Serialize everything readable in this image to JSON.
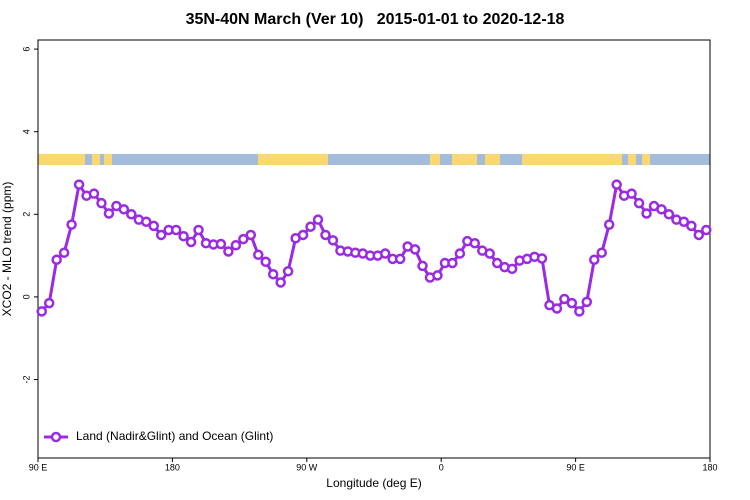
{
  "chart_data": {
    "type": "line",
    "title": "35N-40N March (Ver 10)   2015-01-01 to 2020-12-18",
    "x_label": "Longitude (deg E)",
    "y_label": "XCO2 - MLO trend (ppm)",
    "xlim": [
      90,
      540
    ],
    "ylim": [
      -3.9,
      6.22
    ],
    "xticks": [
      {
        "value": 90,
        "label": "90 E"
      },
      180,
      {
        "value": 270,
        "label": "90 W"
      },
      {
        "value": 360,
        "label": "0"
      },
      {
        "value": 450,
        "label": "90 E"
      },
      {
        "value": 540,
        "label": "180"
      }
    ],
    "yticks": [
      -2,
      0,
      2,
      4,
      6
    ],
    "grid": false,
    "legend": "bottom-left",
    "x": [
      92.5,
      97.5,
      102.5,
      107.5,
      112.5,
      117.5,
      122.5,
      127.5,
      132.5,
      137.5,
      142.5,
      147.5,
      152.5,
      157.5,
      162.5,
      167.5,
      172.5,
      177.5,
      182.5,
      187.5,
      192.5,
      197.5,
      202.5,
      207.5,
      212.5,
      217.5,
      222.5,
      227.5,
      232.5,
      237.5,
      242.5,
      247.5,
      252.5,
      257.5,
      262.5,
      267.5,
      272.5,
      277.5,
      282.5,
      287.5,
      292.5,
      297.5,
      302.5,
      307.5,
      312.5,
      317.5,
      322.5,
      327.5,
      332.5,
      337.5,
      342.5,
      347.5,
      352.5,
      357.5,
      362.5,
      367.5,
      372.5,
      377.5,
      382.5,
      387.5,
      392.5,
      397.5,
      402.5,
      407.5,
      412.5,
      417.5,
      422.5,
      427.5,
      432.5,
      437.5,
      442.5,
      447.5,
      452.5,
      457.5,
      462.5,
      467.5,
      472.5,
      477.5,
      482.5,
      487.5,
      492.5,
      497.5,
      502.5,
      507.5,
      512.5,
      517.5,
      522.5,
      527.5,
      532.5,
      537.5
    ],
    "series": [
      {
        "name": "Land (Nadir&Glint) and Ocean (Glint)",
        "color": "#9a2be2",
        "values": [
          -0.35,
          -0.15,
          0.9,
          1.07,
          1.75,
          2.72,
          2.45,
          2.5,
          2.27,
          2.02,
          2.2,
          2.12,
          2.0,
          1.87,
          1.82,
          1.72,
          1.5,
          1.62,
          1.62,
          1.47,
          1.33,
          1.62,
          1.3,
          1.27,
          1.28,
          1.1,
          1.25,
          1.4,
          1.5,
          1.02,
          0.85,
          0.55,
          0.35,
          0.62,
          1.42,
          1.5,
          1.7,
          1.87,
          1.5,
          1.37,
          1.12,
          1.1,
          1.07,
          1.05,
          1.0,
          1.0,
          1.05,
          0.92,
          0.92,
          1.22,
          1.15,
          0.75,
          0.47,
          0.52,
          0.82,
          0.82,
          1.05,
          1.35,
          1.3,
          1.12,
          1.05,
          0.82,
          0.72,
          0.68,
          0.88,
          0.92,
          0.97,
          0.93,
          -0.2,
          -0.28,
          -0.05,
          -0.15,
          -0.35,
          -0.12,
          0.9,
          1.07,
          1.75,
          2.72,
          2.45,
          2.5,
          2.27,
          2.02,
          2.2,
          2.12,
          2.0,
          1.87,
          1.82,
          1.72,
          1.5,
          1.62
        ]
      }
    ]
  }
}
